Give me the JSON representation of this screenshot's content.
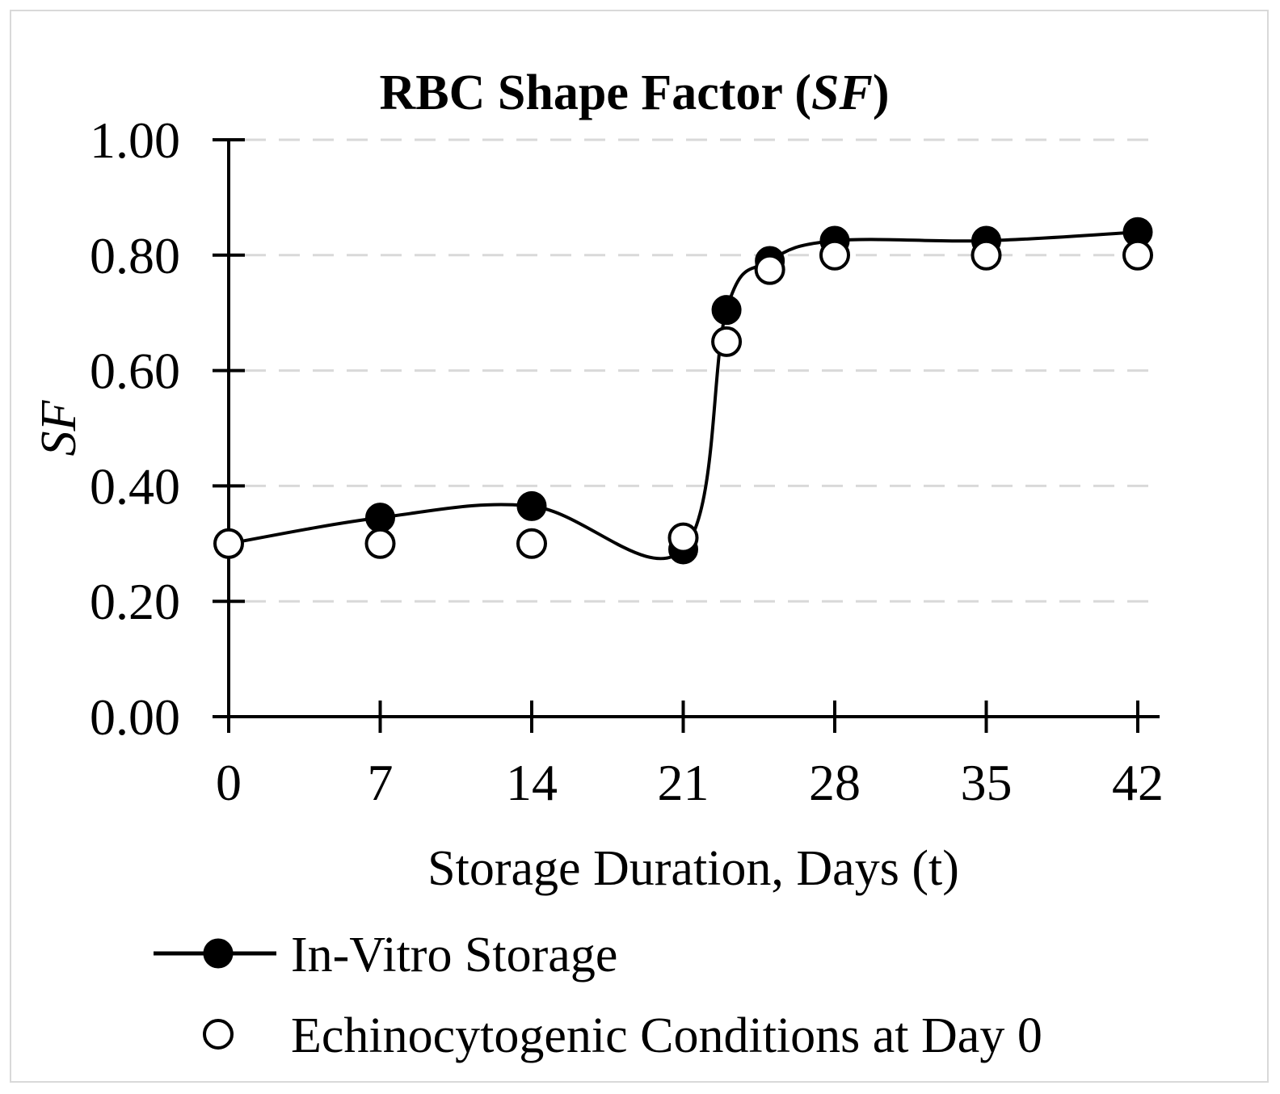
{
  "chart_data": {
    "type": "line",
    "title_main": "RBC Shape Factor (",
    "title_italic": "SF",
    "title_end": ")",
    "xlabel": "Storage Duration, Days (t)",
    "ylabel": "SF",
    "xlim": [
      0,
      42
    ],
    "ylim": [
      0,
      1
    ],
    "x_ticks": [
      0,
      7,
      14,
      21,
      28,
      35,
      42
    ],
    "x_tick_labels": [
      "0",
      "7",
      "14",
      "21",
      "28",
      "35",
      "42"
    ],
    "y_ticks": [
      0,
      0.2,
      0.4,
      0.6,
      0.8,
      1.0
    ],
    "y_tick_labels": [
      "0.00",
      "0.20",
      "0.40",
      "0.60",
      "0.80",
      "1.00"
    ],
    "grid": "horizontal-dashed",
    "legend_position": "bottom",
    "series": [
      {
        "name": "In-Vitro Storage",
        "marker": "filled-circle",
        "line": true,
        "color": "#000000",
        "x": [
          0,
          7,
          14,
          21,
          23,
          25,
          28,
          35,
          42
        ],
        "y": [
          0.3,
          0.345,
          0.365,
          0.29,
          0.705,
          0.79,
          0.825,
          0.825,
          0.84
        ]
      },
      {
        "name": "Echinocytogenic Conditions at Day 0",
        "marker": "open-circle",
        "line": false,
        "color": "#000000",
        "x": [
          0,
          7,
          14,
          21,
          23,
          25,
          28,
          35,
          42
        ],
        "y": [
          0.3,
          0.3,
          0.3,
          0.31,
          0.65,
          0.775,
          0.8,
          0.8,
          0.8
        ]
      }
    ]
  }
}
